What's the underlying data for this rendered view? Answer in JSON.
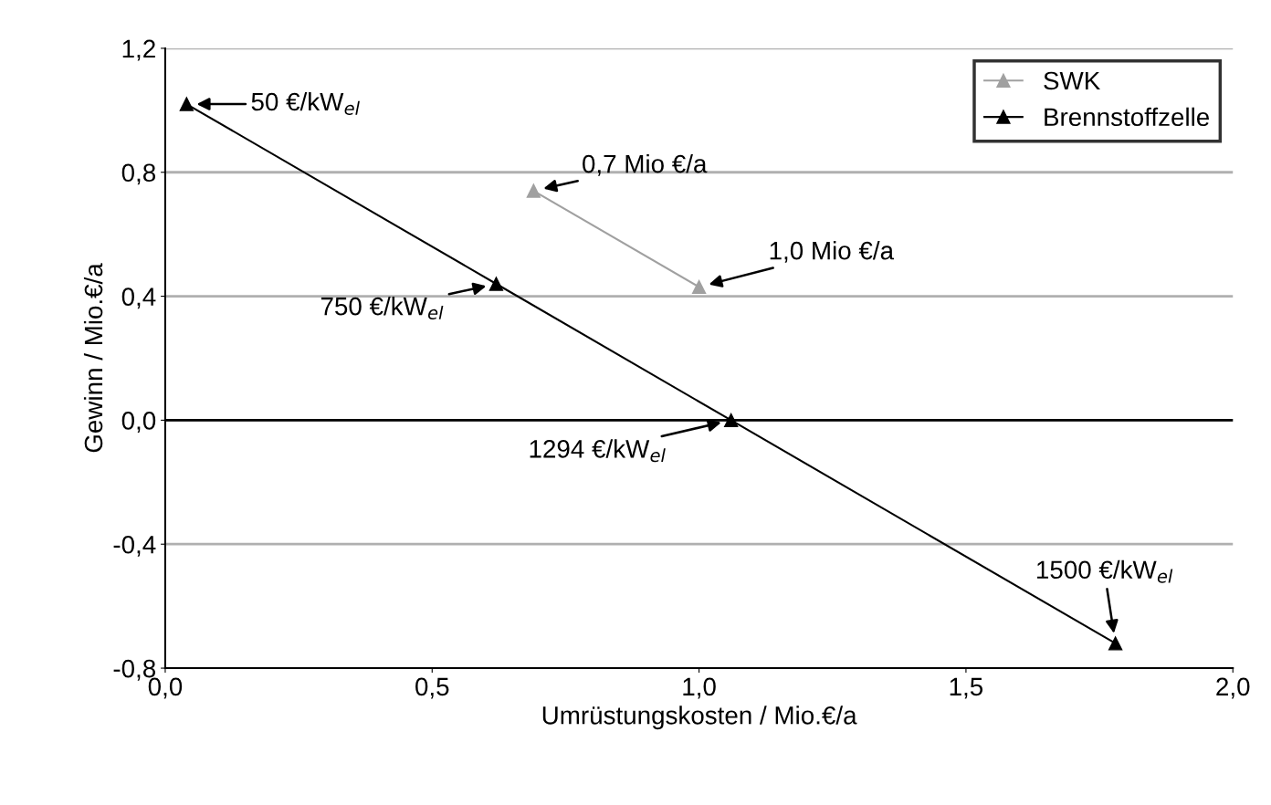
{
  "chart_data": {
    "type": "line",
    "xlabel": "Umrüstungskosten / Mio.€/a",
    "ylabel": "Gewinn / Mio.€/a",
    "xlim": [
      0,
      2
    ],
    "xticks": [
      {
        "value": 0,
        "label": "0,0"
      },
      {
        "value": 0.5,
        "label": "0,5"
      },
      {
        "value": 1,
        "label": "1,0"
      },
      {
        "value": 1.5,
        "label": "1,5"
      },
      {
        "value": 2,
        "label": "2,0"
      }
    ],
    "ylim": [
      -0.8,
      1.2
    ],
    "yticks": [
      {
        "value": -0.8,
        "label": "-0,8"
      },
      {
        "value": -0.4,
        "label": "-0,4"
      },
      {
        "value": 0,
        "label": "0,0"
      },
      {
        "value": 0.4,
        "label": "0,4"
      },
      {
        "value": 0.8,
        "label": "0,8"
      },
      {
        "value": 1.2,
        "label": "1,2"
      }
    ],
    "grid": "y",
    "legend": "top right",
    "marker": "triangle",
    "series": [
      {
        "name": "SWK",
        "color": "#a0a0a0",
        "x": [
          0.69,
          1.0
        ],
        "values": [
          0.74,
          0.43
        ]
      },
      {
        "name": "Brennstoffzelle",
        "color": "#000000",
        "x": [
          0.04,
          0.62,
          1.06,
          1.78
        ],
        "values": [
          1.02,
          0.44,
          0.0,
          -0.72
        ]
      }
    ],
    "ref_lines": [
      {
        "axis": "y",
        "value": 0,
        "color": "#000000"
      }
    ],
    "annotations": [
      {
        "text": "50 €/kW$_{el}$",
        "x": 0.04,
        "y": 1.02
      },
      {
        "text": "750 €/kW$_{el}$",
        "x": 0.62,
        "y": 0.44
      },
      {
        "text": "1294 €/kW$_{el}$",
        "x": 1.06,
        "y": 0.0
      },
      {
        "text": "1500 €/kW$_{el}$",
        "x": 1.78,
        "y": -0.72
      },
      {
        "text": "0,7 Mio €/a",
        "x": 0.69,
        "y": 0.74
      },
      {
        "text": "1,0 Mio €/a",
        "x": 1.0,
        "y": 0.43
      }
    ]
  }
}
